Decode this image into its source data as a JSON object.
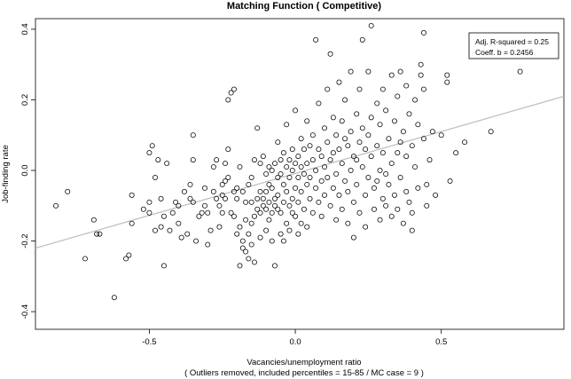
{
  "chart_data": {
    "type": "scatter",
    "title": "Matching Function ( Competitive)",
    "xlabel": "Vacancies/unemployment ratio",
    "xlabel_note": "( Outliers removed, included percentiles = 15-85 / MC case = 9 )",
    "ylabel": "Job-finding rate",
    "xlim": [
      -0.89,
      0.92
    ],
    "ylim": [
      -0.45,
      0.43
    ],
    "x_ticks": [
      {
        "value": -0.5,
        "label": "-0.5"
      },
      {
        "value": 0.0,
        "label": "0.0"
      },
      {
        "value": 0.5,
        "label": "0.5"
      }
    ],
    "y_ticks": [
      {
        "value": -0.4,
        "label": "-0.4"
      },
      {
        "value": -0.2,
        "label": "-0.2"
      },
      {
        "value": 0.0,
        "label": "0.0"
      },
      {
        "value": 0.2,
        "label": "0.2"
      },
      {
        "value": 0.4,
        "label": "0.4"
      }
    ],
    "legend": {
      "position": "top-right",
      "lines": [
        "Adj. R-squared = 0.25",
        "Coeff. b = 0.2456"
      ]
    },
    "fit_line": {
      "x": [
        -0.89,
        0.92
      ],
      "y": [
        -0.22,
        0.21
      ]
    },
    "points": [
      [
        -0.82,
        -0.1
      ],
      [
        -0.78,
        -0.06
      ],
      [
        -0.72,
        -0.25
      ],
      [
        -0.69,
        -0.14
      ],
      [
        -0.68,
        -0.18
      ],
      [
        -0.67,
        -0.18
      ],
      [
        -0.62,
        -0.36
      ],
      [
        -0.58,
        -0.25
      ],
      [
        -0.57,
        -0.24
      ],
      [
        -0.56,
        -0.15
      ],
      [
        -0.56,
        -0.07
      ],
      [
        -0.52,
        -0.11
      ],
      [
        -0.5,
        -0.09
      ],
      [
        -0.5,
        -0.12
      ],
      [
        -0.5,
        0.05
      ],
      [
        -0.49,
        0.07
      ],
      [
        -0.48,
        -0.17
      ],
      [
        -0.48,
        -0.02
      ],
      [
        -0.47,
        0.03
      ],
      [
        -0.46,
        -0.16
      ],
      [
        -0.46,
        -0.08
      ],
      [
        -0.45,
        -0.13
      ],
      [
        -0.45,
        -0.27
      ],
      [
        -0.44,
        0.02
      ],
      [
        -0.43,
        -0.17
      ],
      [
        -0.42,
        -0.12
      ],
      [
        -0.41,
        -0.09
      ],
      [
        -0.4,
        -0.1
      ],
      [
        -0.4,
        -0.15
      ],
      [
        -0.39,
        -0.19
      ],
      [
        -0.38,
        -0.06
      ],
      [
        -0.37,
        -0.18
      ],
      [
        -0.36,
        -0.08
      ],
      [
        -0.36,
        -0.04
      ],
      [
        -0.35,
        0.03
      ],
      [
        -0.35,
        0.1
      ],
      [
        -0.35,
        -0.09
      ],
      [
        -0.34,
        -0.2
      ],
      [
        -0.33,
        -0.13
      ],
      [
        -0.32,
        -0.12
      ],
      [
        -0.31,
        -0.05
      ],
      [
        -0.31,
        -0.1
      ],
      [
        -0.3,
        -0.12
      ],
      [
        -0.3,
        -0.21
      ],
      [
        -0.29,
        -0.17
      ],
      [
        -0.28,
        0.01
      ],
      [
        -0.28,
        -0.06
      ],
      [
        -0.27,
        0.03
      ],
      [
        -0.27,
        -0.08
      ],
      [
        -0.26,
        -0.1
      ],
      [
        -0.26,
        -0.16
      ],
      [
        -0.25,
        -0.04
      ],
      [
        -0.25,
        -0.07
      ],
      [
        -0.25,
        -0.12
      ],
      [
        -0.24,
        0.02
      ],
      [
        -0.24,
        -0.03
      ],
      [
        -0.24,
        -0.08
      ],
      [
        -0.23,
        0.06
      ],
      [
        -0.23,
        -0.02
      ],
      [
        -0.23,
        0.2
      ],
      [
        -0.22,
        -0.12
      ],
      [
        -0.22,
        0.22
      ],
      [
        -0.21,
        -0.06
      ],
      [
        -0.21,
        -0.13
      ],
      [
        -0.21,
        0.23
      ],
      [
        -0.2,
        -0.05
      ],
      [
        -0.2,
        -0.08
      ],
      [
        -0.2,
        -0.18
      ],
      [
        -0.19,
        0.01
      ],
      [
        -0.19,
        -0.16
      ],
      [
        -0.19,
        -0.27
      ],
      [
        -0.18,
        -0.06
      ],
      [
        -0.18,
        -0.2
      ],
      [
        -0.18,
        -0.22
      ],
      [
        -0.17,
        -0.09
      ],
      [
        -0.17,
        -0.14
      ],
      [
        -0.17,
        -0.23
      ],
      [
        -0.16,
        -0.04
      ],
      [
        -0.16,
        -0.18
      ],
      [
        -0.16,
        -0.25
      ],
      [
        -0.15,
        -0.02
      ],
      [
        -0.15,
        -0.09
      ],
      [
        -0.15,
        -0.15
      ],
      [
        -0.15,
        -0.21
      ],
      [
        -0.14,
        0.03
      ],
      [
        -0.14,
        -0.13
      ],
      [
        -0.14,
        -0.26
      ],
      [
        -0.13,
        0.12
      ],
      [
        -0.13,
        -0.08
      ],
      [
        -0.13,
        -0.11
      ],
      [
        -0.12,
        0.02
      ],
      [
        -0.12,
        -0.06
      ],
      [
        -0.12,
        -0.12
      ],
      [
        -0.12,
        -0.19
      ],
      [
        -0.11,
        0.04
      ],
      [
        -0.11,
        -0.08
      ],
      [
        -0.11,
        -0.1
      ],
      [
        -0.1,
        -0.01
      ],
      [
        -0.1,
        -0.06
      ],
      [
        -0.1,
        -0.11
      ],
      [
        -0.1,
        -0.17
      ],
      [
        -0.09,
        0.01
      ],
      [
        -0.09,
        -0.04
      ],
      [
        -0.09,
        -0.09
      ],
      [
        -0.09,
        -0.14
      ],
      [
        -0.08,
        0.0
      ],
      [
        -0.08,
        -0.05
      ],
      [
        -0.08,
        -0.12
      ],
      [
        -0.08,
        -0.2
      ],
      [
        -0.07,
        0.02
      ],
      [
        -0.07,
        -0.08
      ],
      [
        -0.07,
        -0.1
      ],
      [
        -0.07,
        -0.27
      ],
      [
        -0.06,
        0.08
      ],
      [
        -0.06,
        -0.02
      ],
      [
        -0.06,
        -0.07
      ],
      [
        -0.06,
        -0.11
      ],
      [
        -0.05,
        0.03
      ],
      [
        -0.05,
        -0.01
      ],
      [
        -0.05,
        -0.12
      ],
      [
        -0.05,
        -0.18
      ],
      [
        -0.04,
        0.05
      ],
      [
        -0.04,
        -0.04
      ],
      [
        -0.04,
        -0.09
      ],
      [
        -0.04,
        -0.2
      ],
      [
        -0.03,
        0.13
      ],
      [
        -0.03,
        0.01
      ],
      [
        -0.03,
        -0.06
      ],
      [
        -0.03,
        -0.15
      ],
      [
        -0.02,
        0.03
      ],
      [
        -0.02,
        -0.02
      ],
      [
        -0.02,
        -0.1
      ],
      [
        -0.02,
        -0.17
      ],
      [
        -0.01,
        0.06
      ],
      [
        -0.01,
        0.0
      ],
      [
        -0.01,
        -0.08
      ],
      [
        -0.01,
        -0.12
      ],
      [
        0.0,
        0.17
      ],
      [
        0.0,
        0.02
      ],
      [
        0.0,
        -0.05
      ],
      [
        0.0,
        -0.13
      ],
      [
        0.01,
        0.04
      ],
      [
        0.01,
        -0.02
      ],
      [
        0.01,
        -0.09
      ],
      [
        0.01,
        -0.18
      ],
      [
        0.02,
        0.09
      ],
      [
        0.02,
        0.01
      ],
      [
        0.02,
        -0.06
      ],
      [
        0.02,
        -0.15
      ],
      [
        0.03,
        0.06
      ],
      [
        0.03,
        -0.01
      ],
      [
        0.03,
        -0.11
      ],
      [
        0.04,
        0.14
      ],
      [
        0.04,
        0.02
      ],
      [
        0.04,
        -0.04
      ],
      [
        0.04,
        -0.16
      ],
      [
        0.05,
        0.07
      ],
      [
        0.05,
        -0.02
      ],
      [
        0.05,
        -0.08
      ],
      [
        0.06,
        0.1
      ],
      [
        0.06,
        0.03
      ],
      [
        0.06,
        -0.12
      ],
      [
        0.07,
        0.37
      ],
      [
        0.07,
        0.0
      ],
      [
        0.07,
        -0.05
      ],
      [
        0.08,
        0.19
      ],
      [
        0.08,
        0.06
      ],
      [
        0.08,
        -0.09
      ],
      [
        0.09,
        0.04
      ],
      [
        0.09,
        -0.03
      ],
      [
        0.09,
        -0.13
      ],
      [
        0.1,
        0.12
      ],
      [
        0.1,
        0.01
      ],
      [
        0.1,
        -0.07
      ],
      [
        0.11,
        0.23
      ],
      [
        0.11,
        0.08
      ],
      [
        0.11,
        -0.02
      ],
      [
        0.12,
        0.33
      ],
      [
        0.12,
        0.03
      ],
      [
        0.12,
        -0.1
      ],
      [
        0.13,
        0.15
      ],
      [
        0.13,
        0.05
      ],
      [
        0.13,
        -0.05
      ],
      [
        0.14,
        0.1
      ],
      [
        0.14,
        -0.01
      ],
      [
        0.14,
        -0.14
      ],
      [
        0.15,
        0.25
      ],
      [
        0.15,
        0.06
      ],
      [
        0.15,
        -0.07
      ],
      [
        0.16,
        0.14
      ],
      [
        0.16,
        0.02
      ],
      [
        0.16,
        -0.11
      ],
      [
        0.17,
        0.2
      ],
      [
        0.17,
        0.09
      ],
      [
        0.17,
        -0.03
      ],
      [
        0.18,
        0.07
      ],
      [
        0.18,
        -0.06
      ],
      [
        0.18,
        -0.15
      ],
      [
        0.19,
        0.28
      ],
      [
        0.19,
        0.11
      ],
      [
        0.19,
        0.0
      ],
      [
        0.2,
        0.04
      ],
      [
        0.2,
        -0.09
      ],
      [
        0.2,
        -0.19
      ],
      [
        0.21,
        0.16
      ],
      [
        0.21,
        0.03
      ],
      [
        0.21,
        -0.04
      ],
      [
        0.22,
        0.23
      ],
      [
        0.22,
        0.08
      ],
      [
        0.22,
        -0.12
      ],
      [
        0.23,
        0.37
      ],
      [
        0.23,
        0.12
      ],
      [
        0.23,
        0.01
      ],
      [
        0.24,
        0.06
      ],
      [
        0.24,
        -0.07
      ],
      [
        0.24,
        -0.16
      ],
      [
        0.25,
        0.28
      ],
      [
        0.25,
        0.1
      ],
      [
        0.25,
        -0.02
      ],
      [
        0.26,
        0.41
      ],
      [
        0.26,
        0.15
      ],
      [
        0.26,
        0.04
      ],
      [
        0.27,
        -0.05
      ],
      [
        0.27,
        -0.11
      ],
      [
        0.28,
        0.19
      ],
      [
        0.28,
        0.07
      ],
      [
        0.28,
        -0.03
      ],
      [
        0.29,
        0.13
      ],
      [
        0.29,
        0.0
      ],
      [
        0.29,
        -0.14
      ],
      [
        0.3,
        0.23
      ],
      [
        0.3,
        0.05
      ],
      [
        0.3,
        -0.08
      ],
      [
        0.31,
        0.17
      ],
      [
        0.31,
        -0.01
      ],
      [
        0.31,
        -0.1
      ],
      [
        0.32,
        0.09
      ],
      [
        0.32,
        -0.04
      ],
      [
        0.33,
        0.27
      ],
      [
        0.33,
        0.02
      ],
      [
        0.33,
        -0.13
      ],
      [
        0.34,
        0.14
      ],
      [
        0.34,
        -0.07
      ],
      [
        0.35,
        0.21
      ],
      [
        0.35,
        0.05
      ],
      [
        0.35,
        -0.11
      ],
      [
        0.36,
        0.28
      ],
      [
        0.36,
        0.08
      ],
      [
        0.36,
        -0.02
      ],
      [
        0.37,
        0.11
      ],
      [
        0.37,
        -0.15
      ],
      [
        0.38,
        0.24
      ],
      [
        0.38,
        0.04
      ],
      [
        0.38,
        -0.06
      ],
      [
        0.39,
        0.16
      ],
      [
        0.39,
        -0.09
      ],
      [
        0.4,
        0.07
      ],
      [
        0.4,
        -0.12
      ],
      [
        0.4,
        -0.17
      ],
      [
        0.41,
        0.2
      ],
      [
        0.41,
        0.01
      ],
      [
        0.42,
        0.13
      ],
      [
        0.42,
        -0.05
      ],
      [
        0.43,
        0.27
      ],
      [
        0.43,
        0.3
      ],
      [
        0.44,
        0.39
      ],
      [
        0.44,
        0.23
      ],
      [
        0.44,
        0.09
      ],
      [
        0.45,
        -0.04
      ],
      [
        0.45,
        -0.1
      ],
      [
        0.46,
        0.03
      ],
      [
        0.47,
        0.11
      ],
      [
        0.48,
        -0.07
      ],
      [
        0.5,
        0.1
      ],
      [
        0.52,
        0.27
      ],
      [
        0.52,
        0.25
      ],
      [
        0.53,
        -0.03
      ],
      [
        0.55,
        0.05
      ],
      [
        0.58,
        0.08
      ],
      [
        0.67,
        0.11
      ],
      [
        0.77,
        0.28
      ]
    ]
  }
}
